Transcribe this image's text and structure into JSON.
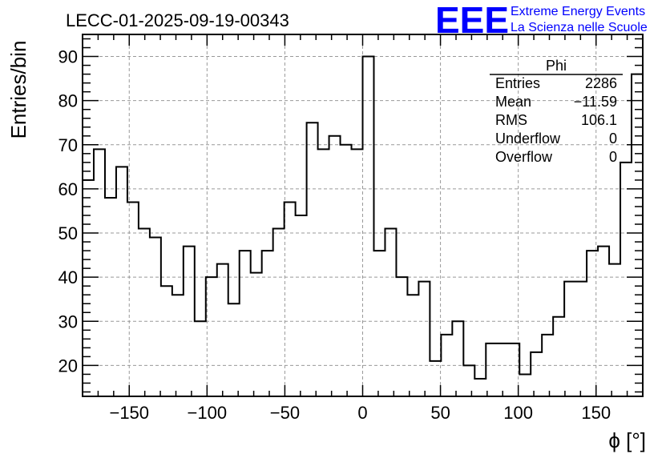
{
  "chart_data": {
    "type": "histogram",
    "title": "LECC-01-2025-09-19-00343",
    "xlabel": "ϕ [°]",
    "ylabel": "Entries/bin",
    "xlim": [
      -180,
      180
    ],
    "ylim": [
      13,
      95
    ],
    "xticks": [
      -150,
      -100,
      -50,
      0,
      50,
      100,
      150
    ],
    "xtick_labels": [
      "−150",
      "−100",
      "−50",
      "0",
      "50",
      "100",
      "150"
    ],
    "yticks": [
      20,
      30,
      40,
      50,
      60,
      70,
      80,
      90
    ],
    "ytick_labels": [
      "20",
      "30",
      "40",
      "50",
      "60",
      "70",
      "80",
      "90"
    ],
    "grid": true,
    "line_color": "#000000",
    "bin_edges_start": -180,
    "bin_width": 7.2,
    "values": [
      62,
      69,
      58,
      65,
      57,
      51,
      49,
      38,
      36,
      47,
      30,
      40,
      43,
      34,
      46,
      41,
      46,
      51,
      57,
      54,
      75,
      69,
      72,
      70,
      69,
      90,
      46,
      51,
      40,
      36,
      39,
      21,
      27,
      30,
      20,
      17,
      25,
      25,
      25,
      18,
      23,
      27,
      31,
      39,
      39,
      46,
      47,
      43,
      66,
      86
    ],
    "stats": {
      "name": "Phi",
      "rows": [
        {
          "label": "Entries",
          "value": "2286"
        },
        {
          "label": "Mean",
          "value": "−11.59"
        },
        {
          "label": "RMS",
          "value": "106.1"
        },
        {
          "label": "Underflow",
          "value": "0"
        },
        {
          "label": "Overflow",
          "value": "0"
        }
      ]
    }
  },
  "logo": {
    "mark": "EEE",
    "line1": "Extreme Energy Events",
    "line2": "La Scienza nelle Scuole",
    "color": "#0000ff"
  }
}
